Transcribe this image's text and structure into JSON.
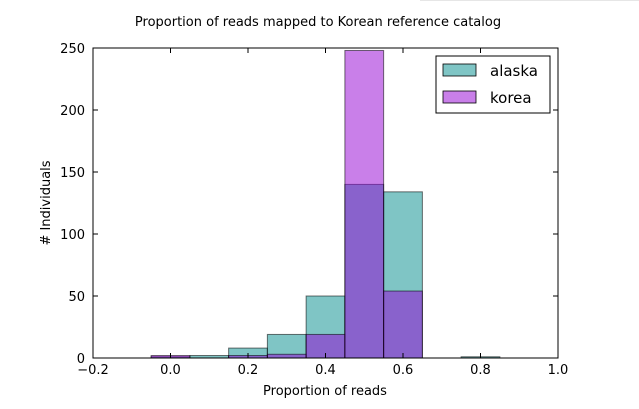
{
  "chart_data": {
    "type": "bar",
    "title": "Proportion of reads mapped to Korean reference catalog",
    "xlabel": "Proportion of reads",
    "ylabel": "# Individuals",
    "xlim": [
      -0.2,
      1.0
    ],
    "ylim": [
      0,
      250
    ],
    "xticks": [
      "−0.2",
      "0.0",
      "0.2",
      "0.4",
      "0.6",
      "0.8",
      "1.0"
    ],
    "xtick_values": [
      -0.2,
      0.0,
      0.2,
      0.4,
      0.6,
      0.8,
      1.0
    ],
    "yticks": [
      "0",
      "50",
      "100",
      "150",
      "200",
      "250"
    ],
    "ytick_values": [
      0,
      50,
      100,
      150,
      200,
      250
    ],
    "grid": false,
    "legend_position": "top-right",
    "bin_edges": [
      -0.05,
      0.05,
      0.15,
      0.25,
      0.35,
      0.45,
      0.55,
      0.65,
      0.75,
      0.85
    ],
    "series": [
      {
        "name": "alaska",
        "color": "#008B8B",
        "opacity": 0.5,
        "values": [
          1,
          2,
          8,
          19,
          50,
          140,
          134,
          0,
          1
        ]
      },
      {
        "name": "korea",
        "color": "#9400D3",
        "opacity": 0.5,
        "values": [
          2,
          0,
          2,
          3,
          19,
          248,
          54,
          0,
          0
        ]
      }
    ]
  }
}
